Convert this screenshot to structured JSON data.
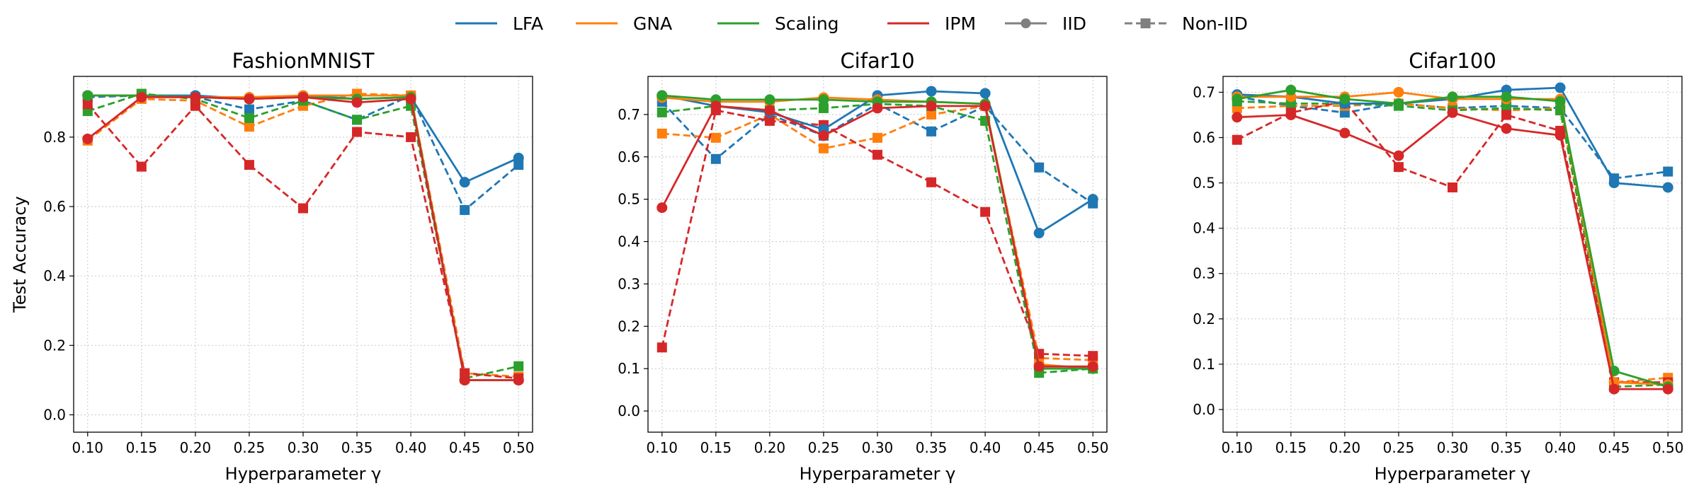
{
  "legend": {
    "items": [
      {
        "label": "LFA",
        "kind": "color",
        "color": "#1f77b4"
      },
      {
        "label": "GNA",
        "kind": "color",
        "color": "#ff7f0e"
      },
      {
        "label": "Scaling",
        "kind": "color",
        "color": "#2ca02c"
      },
      {
        "label": "IPM",
        "kind": "color",
        "color": "#d62728"
      },
      {
        "label": "IID",
        "kind": "style",
        "color": "#808080",
        "line": "solid",
        "marker": "circle"
      },
      {
        "label": "Non-IID",
        "kind": "style",
        "color": "#808080",
        "line": "dashed",
        "marker": "square"
      }
    ]
  },
  "styles": {
    "IID": {
      "line": "solid",
      "marker": "circle"
    },
    "Non-IID": {
      "line": "dashed",
      "marker": "square"
    },
    "grid_color": "#d0d0d0"
  },
  "chart_data": [
    {
      "type": "line",
      "title": "FashionMNIST",
      "xlabel": "Hyperparameter γ",
      "ylabel": "Test Accuracy",
      "x": [
        0.1,
        0.15,
        0.2,
        0.25,
        0.3,
        0.35,
        0.4,
        0.45,
        0.5
      ],
      "x_tick_labels": [
        "0.10",
        "0.15",
        "0.20",
        "0.25",
        "0.30",
        "0.35",
        "0.40",
        "0.45",
        "0.50"
      ],
      "xlim": [
        0.087,
        0.513
      ],
      "ylim": [
        -0.05,
        0.975
      ],
      "y_ticks": [
        0.0,
        0.2,
        0.4,
        0.6,
        0.8
      ],
      "y_tick_labels": [
        "0.0",
        "0.2",
        "0.4",
        "0.6",
        "0.8"
      ],
      "grid": true,
      "series": [
        {
          "name": "LFA",
          "setting": "Non-IID",
          "color": "#1f77b4",
          "values": [
            0.915,
            0.92,
            0.915,
            0.88,
            0.905,
            0.85,
            0.92,
            0.59,
            0.72
          ]
        },
        {
          "name": "GNA",
          "setting": "Non-IID",
          "color": "#ff7f0e",
          "values": [
            0.79,
            0.91,
            0.905,
            0.83,
            0.89,
            0.925,
            0.92,
            0.12,
            0.11
          ]
        },
        {
          "name": "Scaling",
          "setting": "Non-IID",
          "color": "#2ca02c",
          "values": [
            0.875,
            0.925,
            0.91,
            0.855,
            0.905,
            0.85,
            0.89,
            0.105,
            0.14
          ]
        },
        {
          "name": "IPM",
          "setting": "Non-IID",
          "color": "#d62728",
          "values": [
            0.895,
            0.715,
            0.89,
            0.72,
            0.595,
            0.815,
            0.8,
            0.12,
            0.105
          ]
        },
        {
          "name": "LFA",
          "setting": "IID",
          "color": "#1f77b4",
          "values": [
            0.92,
            0.92,
            0.92,
            0.91,
            0.92,
            0.91,
            0.915,
            0.67,
            0.74
          ]
        },
        {
          "name": "GNA",
          "setting": "IID",
          "color": "#ff7f0e",
          "values": [
            0.92,
            0.92,
            0.915,
            0.915,
            0.92,
            0.92,
            0.92,
            0.1,
            0.1
          ]
        },
        {
          "name": "Scaling",
          "setting": "IID",
          "color": "#2ca02c",
          "values": [
            0.92,
            0.92,
            0.915,
            0.91,
            0.915,
            0.91,
            0.915,
            0.1,
            0.1
          ]
        },
        {
          "name": "IPM",
          "setting": "IID",
          "color": "#d62728",
          "values": [
            0.795,
            0.915,
            0.915,
            0.91,
            0.915,
            0.9,
            0.91,
            0.1,
            0.1
          ]
        }
      ]
    },
    {
      "type": "line",
      "title": "Cifar10",
      "xlabel": "Hyperparameter γ",
      "ylabel": "",
      "x": [
        0.1,
        0.15,
        0.2,
        0.25,
        0.3,
        0.35,
        0.4,
        0.45,
        0.5
      ],
      "x_tick_labels": [
        "0.10",
        "0.15",
        "0.20",
        "0.25",
        "0.30",
        "0.35",
        "0.40",
        "0.45",
        "0.50"
      ],
      "xlim": [
        0.087,
        0.513
      ],
      "ylim": [
        -0.05,
        0.79
      ],
      "y_ticks": [
        0.0,
        0.1,
        0.2,
        0.3,
        0.4,
        0.5,
        0.6,
        0.7
      ],
      "y_tick_labels": [
        "0.0",
        "0.1",
        "0.2",
        "0.3",
        "0.4",
        "0.5",
        "0.6",
        "0.7"
      ],
      "grid": true,
      "series": [
        {
          "name": "LFA",
          "setting": "Non-IID",
          "color": "#1f77b4",
          "values": [
            0.73,
            0.595,
            0.7,
            0.65,
            0.725,
            0.66,
            0.72,
            0.575,
            0.49
          ]
        },
        {
          "name": "GNA",
          "setting": "Non-IID",
          "color": "#ff7f0e",
          "values": [
            0.655,
            0.645,
            0.7,
            0.62,
            0.645,
            0.7,
            0.72,
            0.125,
            0.12
          ]
        },
        {
          "name": "Scaling",
          "setting": "Non-IID",
          "color": "#2ca02c",
          "values": [
            0.705,
            0.72,
            0.71,
            0.715,
            0.725,
            0.72,
            0.685,
            0.09,
            0.1
          ]
        },
        {
          "name": "IPM",
          "setting": "Non-IID",
          "color": "#d62728",
          "values": [
            0.15,
            0.71,
            0.685,
            0.675,
            0.605,
            0.54,
            0.47,
            0.135,
            0.13
          ]
        },
        {
          "name": "LFA",
          "setting": "IID",
          "color": "#1f77b4",
          "values": [
            0.745,
            0.72,
            0.705,
            0.665,
            0.745,
            0.755,
            0.75,
            0.42,
            0.5
          ]
        },
        {
          "name": "GNA",
          "setting": "IID",
          "color": "#ff7f0e",
          "values": [
            0.74,
            0.73,
            0.73,
            0.74,
            0.735,
            0.73,
            0.725,
            0.11,
            0.1
          ]
        },
        {
          "name": "Scaling",
          "setting": "IID",
          "color": "#2ca02c",
          "values": [
            0.745,
            0.735,
            0.735,
            0.735,
            0.73,
            0.73,
            0.725,
            0.1,
            0.1
          ]
        },
        {
          "name": "IPM",
          "setting": "IID",
          "color": "#d62728",
          "values": [
            0.48,
            0.72,
            0.71,
            0.65,
            0.715,
            0.72,
            0.72,
            0.105,
            0.105
          ]
        }
      ]
    },
    {
      "type": "line",
      "title": "Cifar100",
      "xlabel": "Hyperparameter γ",
      "ylabel": "",
      "x": [
        0.1,
        0.15,
        0.2,
        0.25,
        0.3,
        0.35,
        0.4,
        0.45,
        0.5
      ],
      "x_tick_labels": [
        "0.10",
        "0.15",
        "0.20",
        "0.25",
        "0.30",
        "0.35",
        "0.40",
        "0.45",
        "0.50"
      ],
      "xlim": [
        0.087,
        0.513
      ],
      "ylim": [
        -0.05,
        0.735
      ],
      "y_ticks": [
        0.0,
        0.1,
        0.2,
        0.3,
        0.4,
        0.5,
        0.6,
        0.7
      ],
      "y_tick_labels": [
        "0.0",
        "0.1",
        "0.2",
        "0.3",
        "0.4",
        "0.5",
        "0.6",
        "0.7"
      ],
      "grid": true,
      "series": [
        {
          "name": "LFA",
          "setting": "Non-IID",
          "color": "#1f77b4",
          "values": [
            0.69,
            0.67,
            0.655,
            0.675,
            0.665,
            0.67,
            0.665,
            0.51,
            0.525
          ]
        },
        {
          "name": "GNA",
          "setting": "Non-IID",
          "color": "#ff7f0e",
          "values": [
            0.665,
            0.67,
            0.67,
            0.675,
            0.665,
            0.66,
            0.665,
            0.06,
            0.07
          ]
        },
        {
          "name": "Scaling",
          "setting": "Non-IID",
          "color": "#2ca02c",
          "values": [
            0.68,
            0.675,
            0.675,
            0.67,
            0.66,
            0.665,
            0.66,
            0.05,
            0.055
          ]
        },
        {
          "name": "IPM",
          "setting": "Non-IID",
          "color": "#d62728",
          "values": [
            0.595,
            0.655,
            0.68,
            0.535,
            0.49,
            0.65,
            0.615,
            0.06,
            0.06
          ]
        },
        {
          "name": "LFA",
          "setting": "IID",
          "color": "#1f77b4",
          "values": [
            0.695,
            0.69,
            0.675,
            0.675,
            0.685,
            0.705,
            0.71,
            0.5,
            0.49
          ]
        },
        {
          "name": "GNA",
          "setting": "IID",
          "color": "#ff7f0e",
          "values": [
            0.69,
            0.69,
            0.69,
            0.7,
            0.685,
            0.685,
            0.685,
            0.06,
            0.055
          ]
        },
        {
          "name": "Scaling",
          "setting": "IID",
          "color": "#2ca02c",
          "values": [
            0.685,
            0.705,
            0.685,
            0.675,
            0.69,
            0.69,
            0.68,
            0.085,
            0.05
          ]
        },
        {
          "name": "IPM",
          "setting": "IID",
          "color": "#d62728",
          "values": [
            0.645,
            0.65,
            0.61,
            0.56,
            0.655,
            0.62,
            0.605,
            0.045,
            0.045
          ]
        }
      ]
    }
  ]
}
